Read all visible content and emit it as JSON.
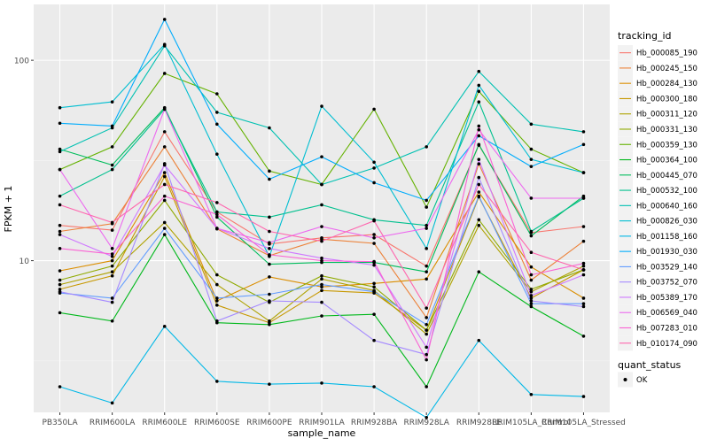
{
  "chart_data": {
    "type": "line",
    "xlabel": "sample_name",
    "ylabel": "FPKM + 1",
    "y_scale": "log10",
    "ylim": [
      1.75,
      190
    ],
    "y_ticks": [
      10,
      100
    ],
    "y_tick_labels": [
      "10",
      "100"
    ],
    "grid": true,
    "legend_position": "right",
    "categories": [
      "PB350LA",
      "RRIM600LA",
      "RRIM600LE",
      "RRIM600SE",
      "RRIM600PE",
      "RRIM901LA",
      "RRIM928BA",
      "RRIM928LA",
      "RRIM928LE",
      "RRIM105LA_Control",
      "RRIM105LA_Stressed"
    ],
    "legend_title": "tracking_id",
    "shape_legend": {
      "title": "quant_status",
      "items": [
        "OK"
      ]
    },
    "series": [
      {
        "name": "Hb_000085_190",
        "color": "#F8766D",
        "values": [
          15.0,
          14.2,
          44.0,
          17.5,
          12.1,
          13.0,
          13.5,
          9.4,
          37.7,
          13.8,
          14.8
        ]
      },
      {
        "name": "Hb_000245_150",
        "color": "#EC8239",
        "values": [
          14.0,
          15.3,
          37.0,
          14.4,
          10.6,
          12.8,
          12.2,
          5.2,
          30.4,
          8.0,
          12.5
        ]
      },
      {
        "name": "Hb_000284_130",
        "color": "#DB8E00",
        "values": [
          8.9,
          10.0,
          27.5,
          6.3,
          8.3,
          7.4,
          7.7,
          8.1,
          22.0,
          9.3,
          6.5
        ]
      },
      {
        "name": "Hb_000300_180",
        "color": "#C79800",
        "values": [
          7.2,
          8.4,
          26.3,
          6.0,
          4.9,
          7.1,
          6.9,
          4.5,
          20.8,
          6.5,
          9.0
        ]
      },
      {
        "name": "Hb_000311_120",
        "color": "#AEA200",
        "values": [
          7.6,
          8.8,
          15.5,
          7.6,
          5.0,
          8.1,
          7.1,
          4.3,
          15.0,
          7.0,
          9.4
        ]
      },
      {
        "name": "Hb_000331_130",
        "color": "#8FAA00",
        "values": [
          8.0,
          9.4,
          20.0,
          8.5,
          6.2,
          8.4,
          7.4,
          4.5,
          16.0,
          7.2,
          9.0
        ]
      },
      {
        "name": "Hb_000359_130",
        "color": "#64B200",
        "values": [
          28.5,
          37.0,
          86.0,
          68.0,
          28.0,
          24.0,
          57.0,
          18.5,
          70.0,
          36.0,
          27.5
        ]
      },
      {
        "name": "Hb_000364_100",
        "color": "#00B81B",
        "values": [
          5.5,
          5.0,
          13.5,
          4.9,
          4.8,
          5.3,
          5.4,
          2.35,
          8.8,
          5.9,
          4.2
        ]
      },
      {
        "name": "Hb_000445_070",
        "color": "#00BD5C",
        "values": [
          36.0,
          30.0,
          58.0,
          16.5,
          9.6,
          9.8,
          9.8,
          8.8,
          38.0,
          13.3,
          21.0
        ]
      },
      {
        "name": "Hb_000532_100",
        "color": "#00C08E",
        "values": [
          21.0,
          28.5,
          57.0,
          17.5,
          16.5,
          19.0,
          16.0,
          15.0,
          62.0,
          14.0,
          20.5
        ]
      },
      {
        "name": "Hb_000640_160",
        "color": "#00C1B2",
        "values": [
          35.0,
          46.0,
          118.0,
          55.0,
          46.0,
          24.0,
          29.0,
          37.0,
          88.0,
          48.0,
          44.0
        ]
      },
      {
        "name": "Hb_000826_030",
        "color": "#00BED1",
        "values": [
          58.0,
          62.0,
          120.0,
          34.0,
          10.5,
          59.0,
          31.0,
          11.5,
          75.0,
          32.0,
          27.5
        ]
      },
      {
        "name": "Hb_001158_160",
        "color": "#00B8E7",
        "values": [
          2.35,
          1.95,
          4.7,
          2.5,
          2.42,
          2.45,
          2.35,
          1.65,
          4.0,
          2.15,
          2.1
        ]
      },
      {
        "name": "Hb_001930_030",
        "color": "#00ACFC",
        "values": [
          48.5,
          47.0,
          160.0,
          48.0,
          25.5,
          33.0,
          24.5,
          20.0,
          42.0,
          29.5,
          38.0
        ]
      },
      {
        "name": "Hb_003529_140",
        "color": "#619CFF",
        "values": [
          6.9,
          6.5,
          14.5,
          6.5,
          6.8,
          7.6,
          7.0,
          4.8,
          21.0,
          6.1,
          6.1
        ]
      },
      {
        "name": "Hb_003752_070",
        "color": "#A58AFF",
        "values": [
          7.0,
          6.2,
          30.5,
          5.0,
          6.3,
          6.2,
          4.0,
          3.4,
          26.0,
          6.3,
          5.9
        ]
      },
      {
        "name": "Hb_005389_170",
        "color": "#CF78FF",
        "values": [
          13.5,
          10.5,
          30.0,
          14.5,
          11.5,
          10.3,
          9.5,
          3.7,
          32.0,
          6.7,
          8.5
        ]
      },
      {
        "name": "Hb_006569_040",
        "color": "#EC69EF",
        "values": [
          28.5,
          11.5,
          57.0,
          14.5,
          12.3,
          14.8,
          13.0,
          14.5,
          45.0,
          20.5,
          20.5
        ]
      },
      {
        "name": "Hb_007283_010",
        "color": "#FA62D4",
        "values": [
          11.5,
          10.8,
          21.0,
          17.0,
          10.7,
          10.0,
          9.9,
          3.2,
          47.0,
          8.5,
          9.7
        ]
      },
      {
        "name": "Hb_010174_090",
        "color": "#FF65AE",
        "values": [
          19.0,
          15.5,
          24.0,
          19.5,
          14.0,
          12.5,
          15.8,
          5.8,
          24.0,
          11.0,
          9.0
        ]
      }
    ]
  }
}
